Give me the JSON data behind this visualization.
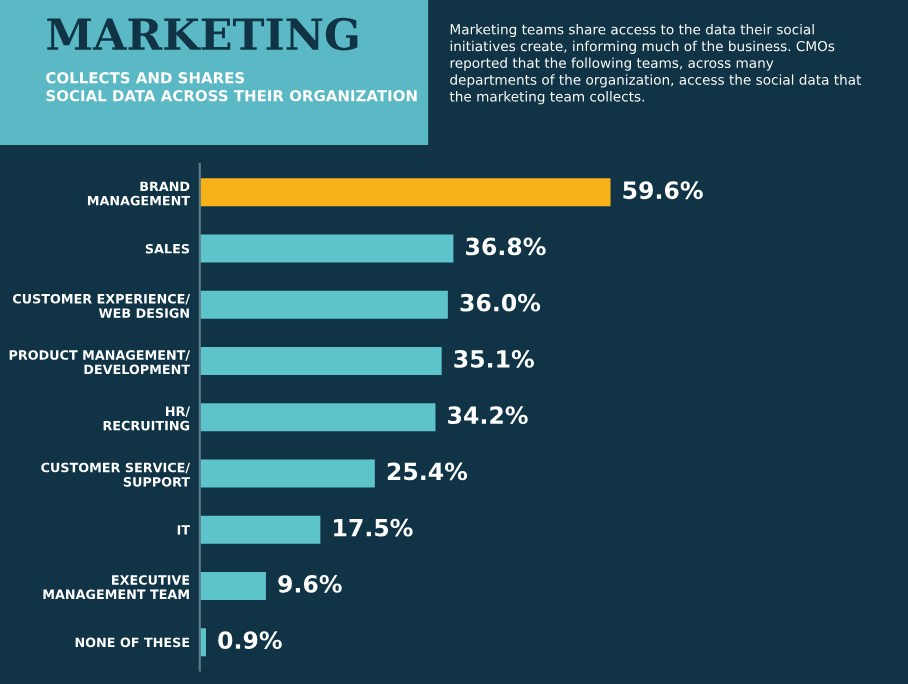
{
  "chart_data": {
    "type": "bar",
    "orientation": "horizontal",
    "title": "MARKETING",
    "subtitle": "COLLECTS AND SHARES\nSOCIAL DATA ACROSS THEIR ORGANIZATION",
    "annotations": [
      "Marketing teams share access to the data their social\ninitiatives create, informing much of the business. CMOs\nreported that the following teams, across many\ndepartments of the organization, access the social data that\nthe marketing team collects."
    ],
    "categories": [
      "BRAND\nMANAGEMENT",
      "SALES",
      "CUSTOMER EXPERIENCE/\nWEB DESIGN",
      "PRODUCT MANAGEMENT/\nDEVELOPMENT",
      "HR/\nRECRUITING",
      "CUSTOMER SERVICE/\nSUPPORT",
      "IT",
      "EXECUTIVE\nMANAGEMENT TEAM",
      "NONE OF THESE"
    ],
    "values": [
      59.6,
      36.8,
      36.0,
      35.1,
      34.2,
      25.4,
      17.5,
      9.6,
      0.9
    ],
    "value_labels": [
      "59.6%",
      "36.8%",
      "36.0%",
      "35.1%",
      "34.2%",
      "25.4%",
      "17.5%",
      "9.6%",
      "0.9%"
    ],
    "colors": [
      "#f7b21a",
      "#5ec4cc",
      "#5ec4cc",
      "#5ec4cc",
      "#5ec4cc",
      "#5ec4cc",
      "#5ec4cc",
      "#5ec4cc",
      "#5ec4cc"
    ],
    "tick_labels": "y",
    "grid": false,
    "legend": false
  }
}
